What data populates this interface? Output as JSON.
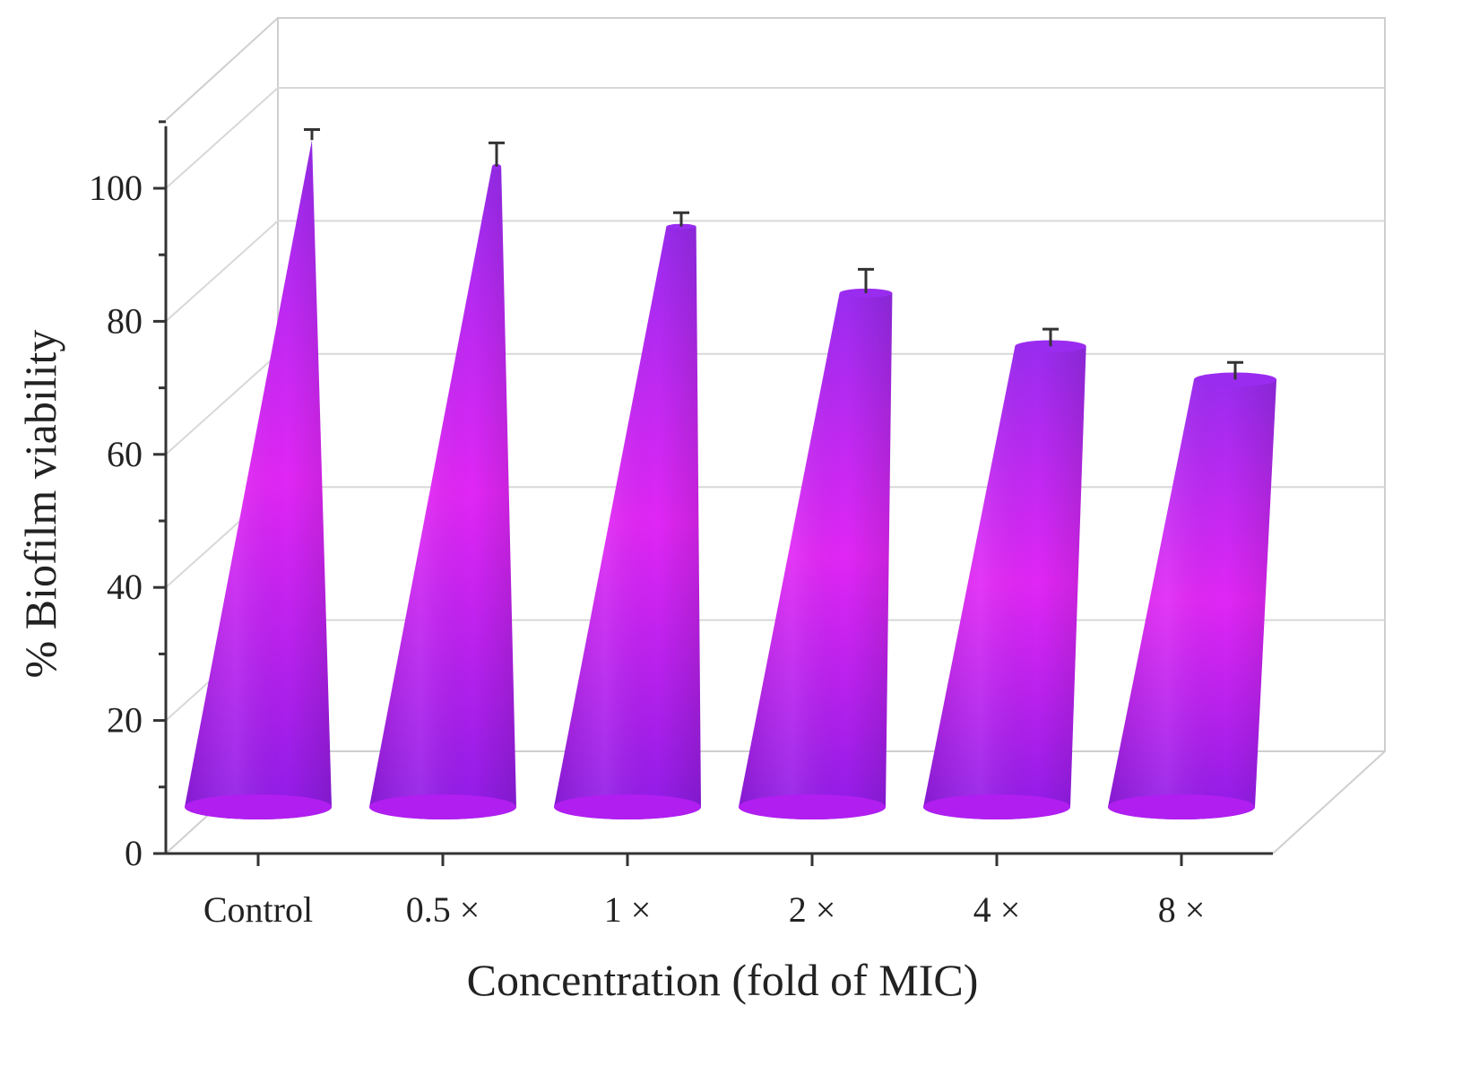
{
  "chart_data": {
    "type": "bar",
    "style": "3d-cone",
    "title": "",
    "xlabel": "Concentration (fold of MIC)",
    "ylabel": "% Biofilm viability",
    "categories": [
      "Control",
      "0.5 ×",
      "1 ×",
      "2 ×",
      "4 ×",
      "8 ×"
    ],
    "values": [
      100,
      96,
      87,
      77,
      69,
      64
    ],
    "errors": [
      0.5,
      2.5,
      1.0,
      2.5,
      1.5,
      1.5
    ],
    "ylim": [
      0,
      110
    ],
    "yticks": [
      "0",
      "20",
      "40",
      "60",
      "80",
      "100"
    ],
    "grid": true,
    "legend": "none"
  },
  "colors": {
    "cone_top": "#9a2cf0",
    "cone_mid": "#e126f5",
    "cone_bottom": "#8e1ce6",
    "base_ellipse": "#b01ef0",
    "axis": "#333333",
    "grid": "#d8d8d8",
    "frame": "#cfcfcf",
    "error_bar": "#333333"
  }
}
